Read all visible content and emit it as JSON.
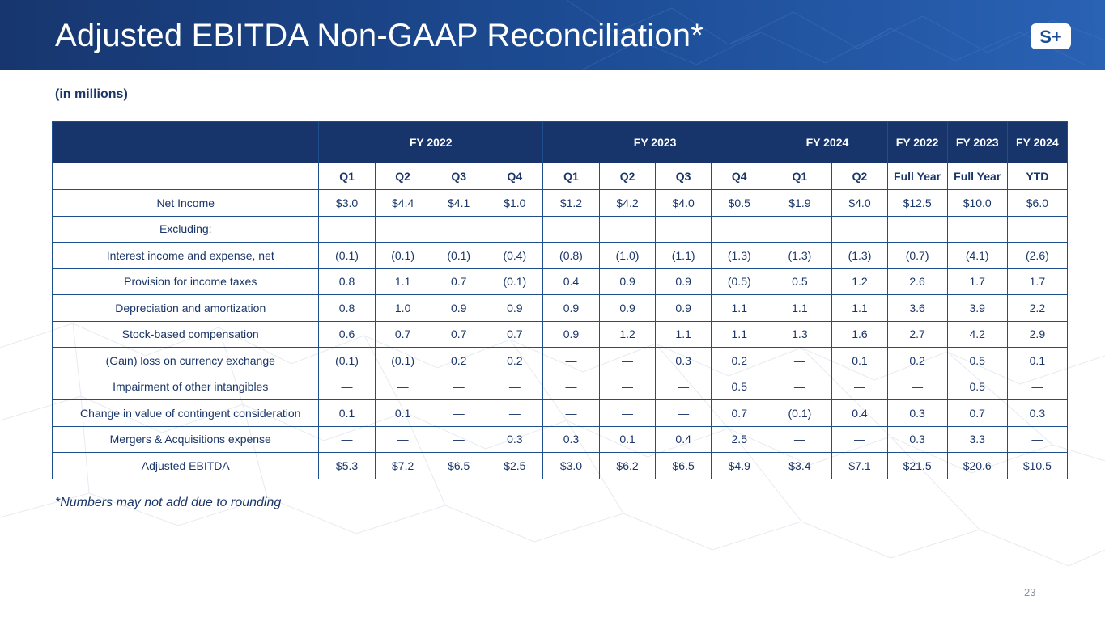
{
  "title": "Adjusted EBITDA Non-GAAP Reconciliation*",
  "subtitle": "(in millions)",
  "logo_text": "S+",
  "group_headers": [
    "FY 2022",
    "FY 2023",
    "FY 2024",
    "FY 2022",
    "FY 2023",
    "FY 2024"
  ],
  "sub_headers": [
    "Q1",
    "Q2",
    "Q3",
    "Q4",
    "Q1",
    "Q2",
    "Q3",
    "Q4",
    "Q1",
    "Q2",
    "Full Year",
    "Full Year",
    "YTD"
  ],
  "rows": [
    {
      "label": "Net Income",
      "values": [
        "$3.0",
        "$4.4",
        "$4.1",
        "$1.0",
        "$1.2",
        "$4.2",
        "$4.0",
        "$0.5",
        "$1.9",
        "$4.0",
        "$12.5",
        "$10.0",
        "$6.0"
      ]
    },
    {
      "label": "Excluding:",
      "values": [
        "",
        "",
        "",
        "",
        "",
        "",
        "",
        "",
        "",
        "",
        "",
        "",
        ""
      ]
    },
    {
      "label": "Interest income and expense, net",
      "values": [
        "(0.1)",
        "(0.1)",
        "(0.1)",
        "(0.4)",
        "(0.8)",
        "(1.0)",
        "(1.1)",
        "(1.3)",
        "(1.3)",
        "(1.3)",
        "(0.7)",
        "(4.1)",
        "(2.6)"
      ]
    },
    {
      "label": "Provision for income taxes",
      "values": [
        "0.8",
        "1.1",
        "0.7",
        "(0.1)",
        "0.4",
        "0.9",
        "0.9",
        "(0.5)",
        "0.5",
        "1.2",
        "2.6",
        "1.7",
        "1.7"
      ]
    },
    {
      "label": "Depreciation and amortization",
      "values": [
        "0.8",
        "1.0",
        "0.9",
        "0.9",
        "0.9",
        "0.9",
        "0.9",
        "1.1",
        "1.1",
        "1.1",
        "3.6",
        "3.9",
        "2.2"
      ]
    },
    {
      "label": "Stock-based compensation",
      "values": [
        "0.6",
        "0.7",
        "0.7",
        "0.7",
        "0.9",
        "1.2",
        "1.1",
        "1.1",
        "1.3",
        "1.6",
        "2.7",
        "4.2",
        "2.9"
      ]
    },
    {
      "label": "(Gain) loss on currency exchange",
      "values": [
        "(0.1)",
        "(0.1)",
        "0.2",
        "0.2",
        "—",
        "—",
        "0.3",
        "0.2",
        "—",
        "0.1",
        "0.2",
        "0.5",
        "0.1"
      ]
    },
    {
      "label": "Impairment of other intangibles",
      "values": [
        "—",
        "—",
        "—",
        "—",
        "—",
        "—",
        "—",
        "0.5",
        "—",
        "—",
        "—",
        "0.5",
        "—"
      ]
    },
    {
      "label": "Change in value of contingent consideration",
      "values": [
        "0.1",
        "0.1",
        "—",
        "—",
        "—",
        "—",
        "—",
        "0.7",
        "(0.1)",
        "0.4",
        "0.3",
        "0.7",
        "0.3"
      ]
    },
    {
      "label": "Mergers & Acquisitions expense",
      "values": [
        "—",
        "—",
        "—",
        "0.3",
        "0.3",
        "0.1",
        "0.4",
        "2.5",
        "—",
        "—",
        "0.3",
        "3.3",
        "—"
      ]
    },
    {
      "label": "Adjusted EBITDA",
      "values": [
        "$5.3",
        "$7.2",
        "$6.5",
        "$2.5",
        "$3.0",
        "$6.2",
        "$6.5",
        "$4.9",
        "$3.4",
        "$7.1",
        "$21.5",
        "$20.6",
        "$10.5"
      ]
    }
  ],
  "footnote": "*Numbers may not add due to rounding",
  "page_number": "23",
  "colors": {
    "header_blue": "#1d4d96",
    "table_header": "#17356b",
    "text": "#1a3668",
    "border": "#1f4e8c"
  }
}
